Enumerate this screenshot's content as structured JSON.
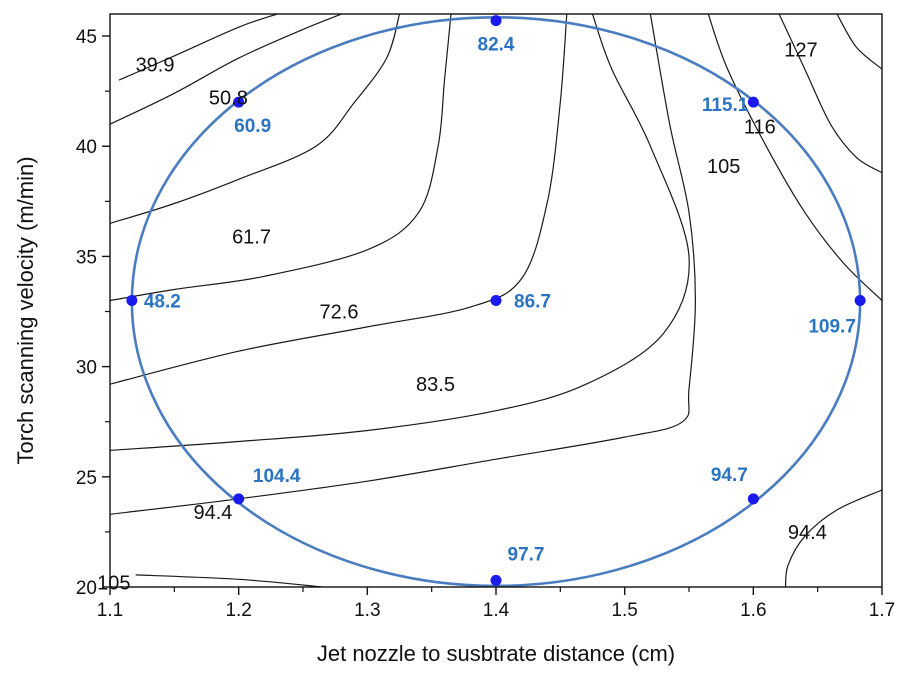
{
  "chart_data": {
    "type": "contour",
    "xlabel": "Jet nozzle to susbtrate distance (cm)",
    "ylabel": "Torch scanning velocity (m/min)",
    "xlim": [
      1.1,
      1.7
    ],
    "ylim": [
      20,
      46
    ],
    "x_ticks": [
      "1.1",
      "1.2",
      "1.3",
      "1.4",
      "1.5",
      "1.6",
      "1.7"
    ],
    "y_ticks": [
      "20",
      "25",
      "30",
      "35",
      "40",
      "45"
    ],
    "grid": false,
    "colors": {
      "points": "#1a1aee",
      "point_labels": "#2b74c2",
      "ellipse": "#4a7cc0",
      "contours": "#1a1a1a"
    },
    "contour_levels": [
      {
        "label": "39.9",
        "points": [
          [
            1.107,
            43.0
          ],
          [
            1.15,
            44.1
          ],
          [
            1.2,
            45.4
          ],
          [
            1.23,
            46.0
          ]
        ]
      },
      {
        "label": "50.8",
        "points": [
          [
            1.1,
            41.0
          ],
          [
            1.15,
            42.4
          ],
          [
            1.2,
            44.0
          ],
          [
            1.25,
            45.3
          ],
          [
            1.28,
            46.0
          ]
        ]
      },
      {
        "label": "61.7",
        "points": [
          [
            1.1,
            36.5
          ],
          [
            1.15,
            37.4
          ],
          [
            1.2,
            38.5
          ],
          [
            1.26,
            40.0
          ],
          [
            1.29,
            42.0
          ],
          [
            1.315,
            44.0
          ],
          [
            1.325,
            46.0
          ]
        ]
      },
      {
        "label": "72.6",
        "points": [
          [
            1.1,
            33.0
          ],
          [
            1.15,
            33.5
          ],
          [
            1.22,
            34.1
          ],
          [
            1.3,
            35.3
          ],
          [
            1.34,
            37.0
          ],
          [
            1.355,
            40.0
          ],
          [
            1.36,
            43.0
          ],
          [
            1.365,
            46.0
          ]
        ]
      },
      {
        "label": "83.5",
        "points": [
          [
            1.1,
            29.2
          ],
          [
            1.2,
            30.7
          ],
          [
            1.3,
            31.8
          ],
          [
            1.38,
            32.7
          ],
          [
            1.42,
            34.0
          ],
          [
            1.44,
            37.5
          ],
          [
            1.45,
            42.0
          ],
          [
            1.455,
            46.0
          ]
        ]
      },
      {
        "label": "94.4",
        "points": [
          [
            1.1,
            26.2
          ],
          [
            1.2,
            26.6
          ],
          [
            1.3,
            27.1
          ],
          [
            1.4,
            28.0
          ],
          [
            1.47,
            29.2
          ],
          [
            1.53,
            31.5
          ],
          [
            1.55,
            35.0
          ],
          [
            1.52,
            40.0
          ],
          [
            1.49,
            43.5
          ],
          [
            1.475,
            46.0
          ]
        ]
      },
      {
        "label": "94.4",
        "points": [
          [
            1.1,
            23.3
          ],
          [
            1.2,
            24.0
          ],
          [
            1.3,
            24.8
          ],
          [
            1.4,
            25.8
          ],
          [
            1.5,
            26.8
          ],
          [
            1.545,
            27.5
          ],
          [
            1.55,
            29.0
          ],
          [
            1.555,
            33.0
          ],
          [
            1.55,
            37.0
          ],
          [
            1.535,
            41.0
          ],
          [
            1.52,
            46.0
          ]
        ]
      },
      {
        "label": "94.4",
        "points": [
          [
            1.625,
            20.0
          ],
          [
            1.627,
            21.0
          ],
          [
            1.64,
            22.3
          ],
          [
            1.665,
            23.5
          ],
          [
            1.7,
            24.4
          ]
        ]
      },
      {
        "label": "105",
        "points": [
          [
            1.12,
            20.55
          ],
          [
            1.2,
            20.35
          ],
          [
            1.265,
            20.0
          ]
        ]
      },
      {
        "label": "105",
        "points": [
          [
            1.565,
            46.0
          ],
          [
            1.58,
            43.5
          ],
          [
            1.61,
            40.0
          ],
          [
            1.64,
            37.0
          ],
          [
            1.67,
            34.7
          ],
          [
            1.7,
            33.0
          ]
        ]
      },
      {
        "label": "116",
        "points": [
          [
            1.62,
            46.0
          ],
          [
            1.64,
            43.5
          ],
          [
            1.66,
            41.0
          ],
          [
            1.68,
            39.5
          ],
          [
            1.7,
            38.8
          ]
        ]
      },
      {
        "label": "127",
        "points": [
          [
            1.665,
            46.0
          ],
          [
            1.68,
            44.5
          ],
          [
            1.7,
            43.5
          ]
        ]
      }
    ],
    "contour_labels": [
      {
        "text": "39.9",
        "x": 1.135,
        "y": 43.7
      },
      {
        "text": "50.8",
        "x": 1.192,
        "y": 42.2
      },
      {
        "text": "61.7",
        "x": 1.21,
        "y": 35.9
      },
      {
        "text": "72.6",
        "x": 1.278,
        "y": 32.5
      },
      {
        "text": "83.5",
        "x": 1.353,
        "y": 29.2
      },
      {
        "text": "94.4",
        "x": 1.18,
        "y": 23.4
      },
      {
        "text": "94.4",
        "x": 1.642,
        "y": 22.5
      },
      {
        "text": "105",
        "x": 1.103,
        "y": 20.2
      },
      {
        "text": "105",
        "x": 1.577,
        "y": 39.1
      },
      {
        "text": "116",
        "x": 1.605,
        "y": 40.9
      },
      {
        "text": "127",
        "x": 1.637,
        "y": 44.4
      }
    ],
    "design_points": [
      {
        "x": 1.4,
        "y": 45.7,
        "label": "82.4"
      },
      {
        "x": 1.2,
        "y": 42.0,
        "label": "60.9"
      },
      {
        "x": 1.6,
        "y": 42.0,
        "label": "115.1"
      },
      {
        "x": 1.117,
        "y": 33.0,
        "label": "48.2"
      },
      {
        "x": 1.4,
        "y": 33.0,
        "label": "86.7"
      },
      {
        "x": 1.683,
        "y": 33.0,
        "label": "109.7"
      },
      {
        "x": 1.2,
        "y": 24.0,
        "label": "104.4"
      },
      {
        "x": 1.6,
        "y": 24.0,
        "label": "94.7"
      },
      {
        "x": 1.4,
        "y": 20.3,
        "label": "97.7"
      }
    ],
    "ellipse": {
      "cx": 1.4,
      "cy": 32.95,
      "rx": 0.283,
      "ry": 12.9
    }
  }
}
